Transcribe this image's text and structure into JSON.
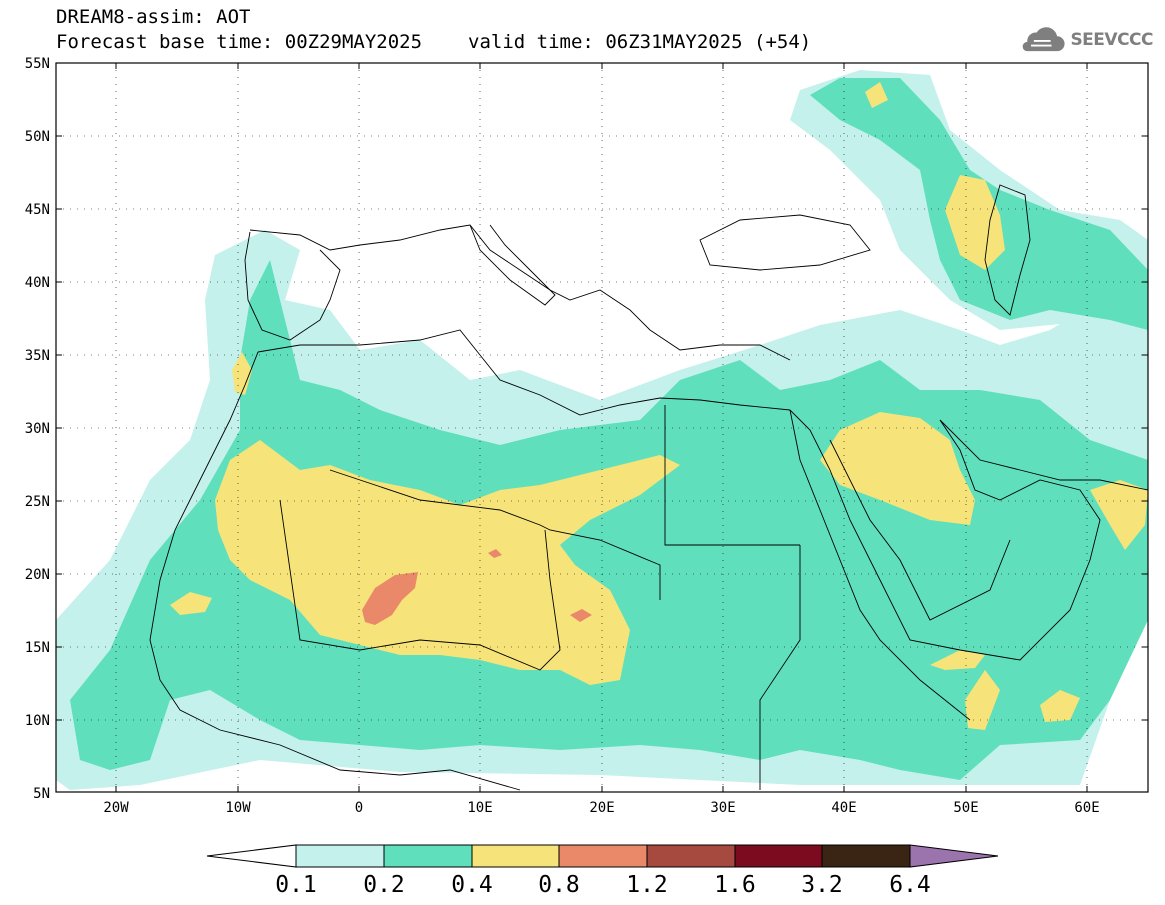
{
  "title": {
    "line1": "DREAM8-assim: AOT",
    "base_time": "Forecast base time: 00Z29MAY2025",
    "valid_time": "valid time: 06Z31MAY2025 (+54)"
  },
  "logo": {
    "text": "SEEVCCC",
    "icon": "cloud-logo-icon"
  },
  "map": {
    "lat_labels": [
      "55N",
      "50N",
      "45N",
      "40N",
      "35N",
      "30N",
      "25N",
      "20N",
      "15N",
      "10N",
      "5N"
    ],
    "lon_labels": [
      "20W",
      "10W",
      "0",
      "10E",
      "20E",
      "30E",
      "40E",
      "50E",
      "60E"
    ]
  },
  "colorbar": {
    "labels": [
      "0.1",
      "0.2",
      "0.4",
      "0.8",
      "1.2",
      "1.6",
      "3.2",
      "6.4"
    ],
    "colors": [
      "#c4f1ec",
      "#5fdfbb",
      "#f6e47a",
      "#e9896a",
      "#a64a3f",
      "#7c0b1f",
      "#3a2514",
      "#9b73ad"
    ]
  }
}
